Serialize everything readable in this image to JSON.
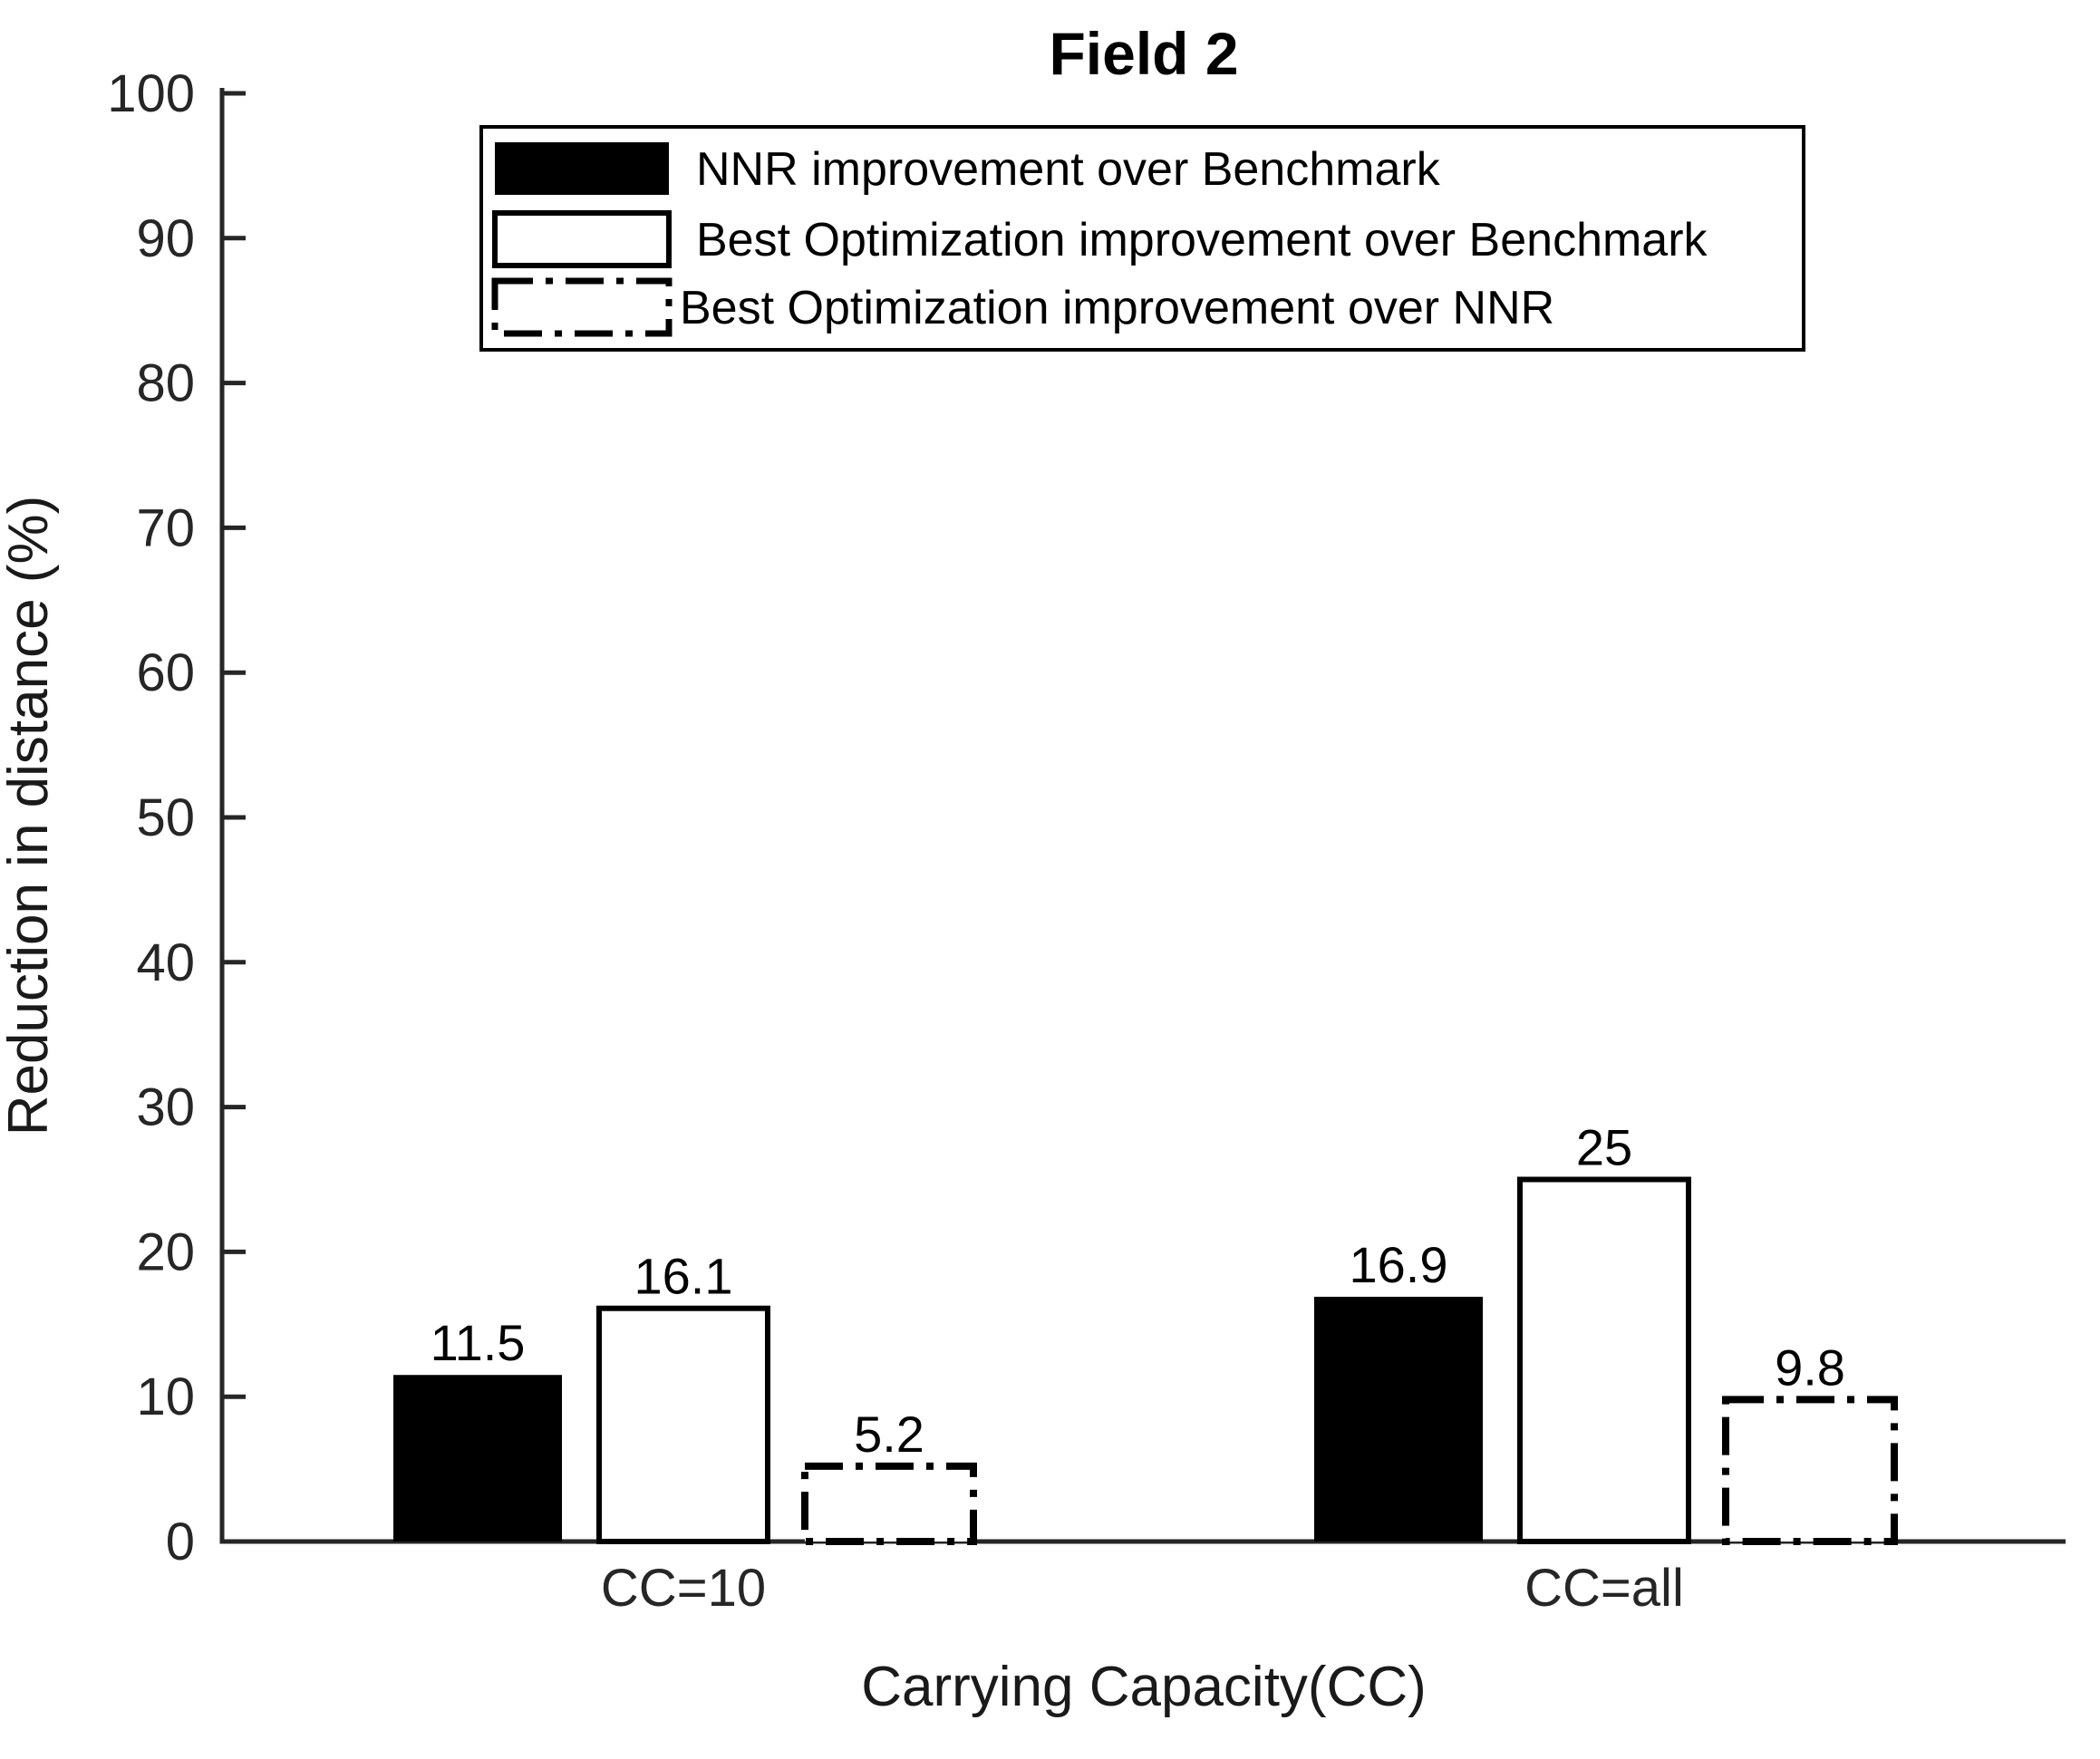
{
  "window": {
    "background_color": "#ffffff"
  },
  "chart_data": {
    "type": "bar",
    "title": "Field 2",
    "xlabel": "Carrying Capacity(CC)",
    "ylabel": "Reduction in distance (%)",
    "ylim": [
      0,
      100
    ],
    "ytick_step": 10,
    "yticks": [
      0,
      10,
      20,
      30,
      40,
      50,
      60,
      70,
      80,
      90,
      100
    ],
    "yticklabels": [
      "0",
      "10",
      "20",
      "30",
      "40",
      "50",
      "60",
      "70",
      "80",
      "90",
      "100"
    ],
    "categories": [
      "CC=10",
      "CC=all"
    ],
    "series": [
      {
        "name": "NNR improvement over Benchmark",
        "values": [
          11.5,
          16.9
        ],
        "style": "solid-black"
      },
      {
        "name": "Best Optimization improvement over Benchmark",
        "values": [
          16.1,
          25.0
        ],
        "style": "white-solid-border"
      },
      {
        "name": "Best Optimization improvement over NNR",
        "values": [
          5.2,
          9.8
        ],
        "style": "white-dashdot-border"
      }
    ],
    "value_labels": [
      [
        "11.5",
        "16.1",
        "5.2"
      ],
      [
        "16.9",
        "25",
        "9.8"
      ]
    ],
    "legend_position": "top-left-inside",
    "grid": false,
    "colors": {
      "bar_fill_black": "#000000",
      "bar_fill_white": "#ffffff",
      "bar_stroke": "#000000",
      "axis": "#262626",
      "text": "#000000",
      "background": "#ffffff"
    }
  }
}
